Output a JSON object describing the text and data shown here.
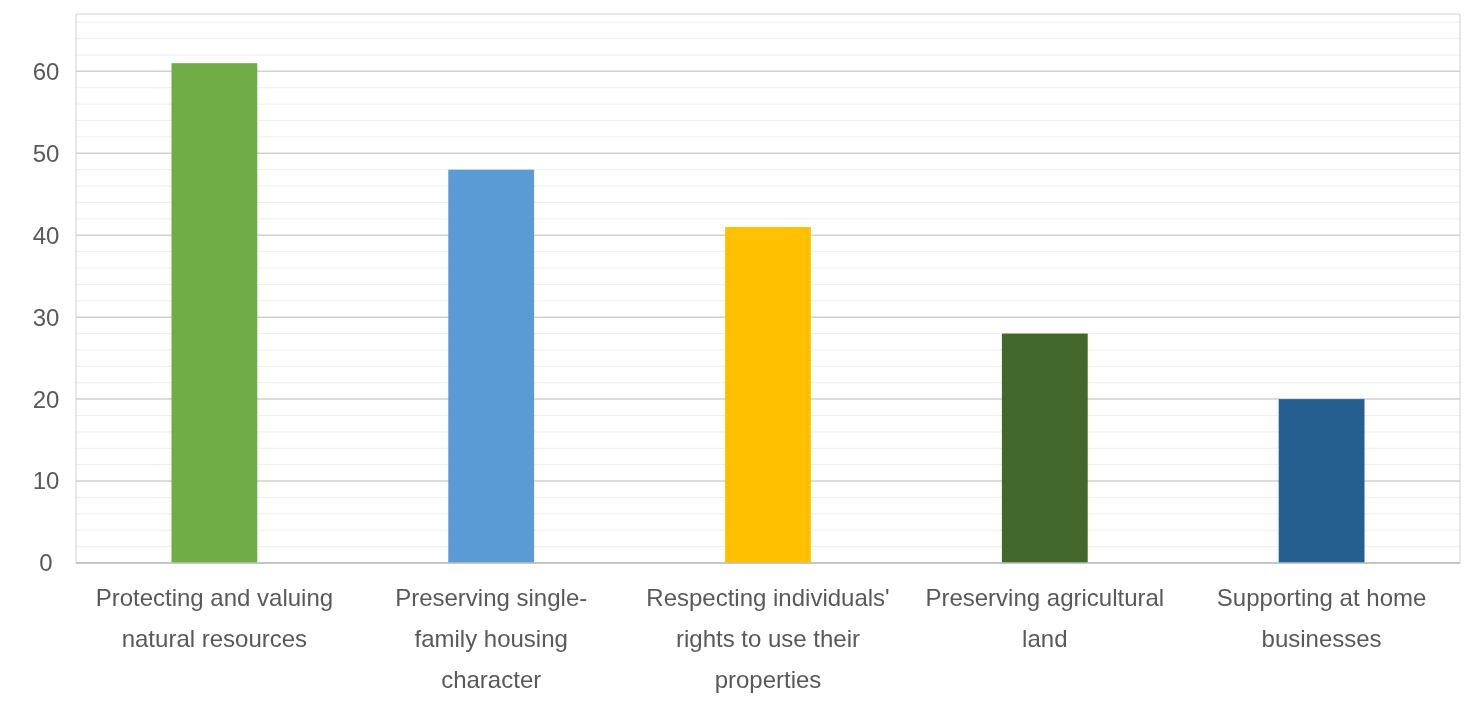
{
  "chart_data": {
    "type": "bar",
    "categories": [
      "Protecting and valuing natural resources",
      "Preserving single-family housing character",
      "Respecting individuals' rights to use their properties",
      "Preserving agricultural land",
      "Supporting at home businesses"
    ],
    "values": [
      61,
      48,
      41,
      28,
      20
    ],
    "colors": [
      "#70ad47",
      "#5b9bd5",
      "#ffc000",
      "#43682b",
      "#255e91"
    ],
    "ylim": [
      0,
      67
    ],
    "yticks": [
      0,
      {
        "value": 2,
        "label": null
      },
      {
        "value": 4,
        "label": null
      },
      {
        "value": 6,
        "label": null
      },
      {
        "value": 8,
        "label": null
      },
      10,
      {
        "value": 12,
        "label": null
      },
      {
        "value": 14,
        "label": null
      },
      {
        "value": 16,
        "label": null
      },
      {
        "value": 18,
        "label": null
      },
      20,
      {
        "value": 22,
        "label": null
      },
      {
        "value": 24,
        "label": null
      },
      {
        "value": 26,
        "label": null
      },
      {
        "value": 28,
        "label": null
      },
      30,
      {
        "value": 32,
        "label": null
      },
      {
        "value": 34,
        "label": null
      },
      {
        "value": 36,
        "label": null
      },
      {
        "value": 38,
        "label": null
      },
      40,
      {
        "value": 42,
        "label": null
      },
      {
        "value": 44,
        "label": null
      },
      {
        "value": 46,
        "label": null
      },
      {
        "value": 48,
        "label": null
      },
      50,
      {
        "value": 52,
        "label": null
      },
      {
        "value": 54,
        "label": null
      },
      {
        "value": 56,
        "label": null
      },
      {
        "value": 58,
        "label": null
      },
      60,
      {
        "value": 62,
        "label": null
      },
      {
        "value": 64,
        "label": null
      },
      {
        "value": 66,
        "label": null
      }
    ],
    "grid": true
  }
}
